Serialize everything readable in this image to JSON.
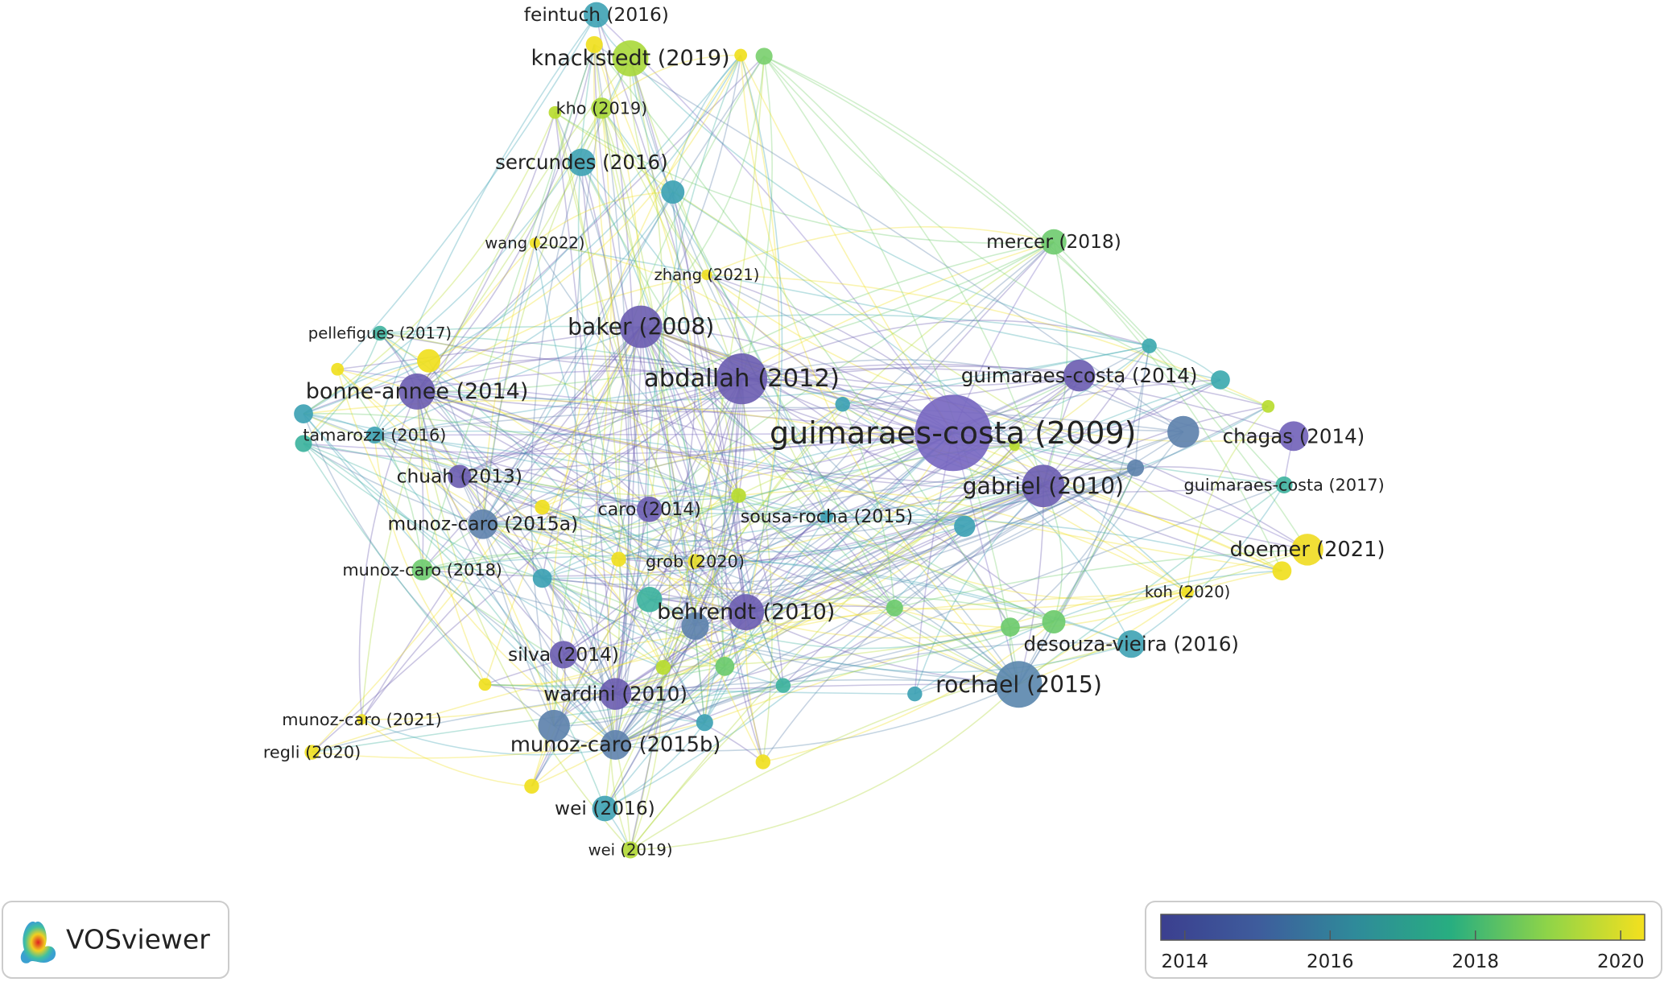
{
  "nodes": [
    {
      "label": "feintuch (2016)"
    },
    {
      "label": "knackstedt (2019)"
    },
    {
      "label": "kho (2019)"
    },
    {
      "label": "sercundes (2016)"
    },
    {
      "label": "wang (2022)"
    },
    {
      "label": "zhang (2021)"
    },
    {
      "label": "mercer (2018)"
    },
    {
      "label": "pellefigues (2017)"
    },
    {
      "label": "baker (2008)"
    },
    {
      "label": "abdallah (2012)"
    },
    {
      "label": "guimaraes-costa (2014)"
    },
    {
      "label": "bonne-annee (2014)"
    },
    {
      "label": "guimaraes-costa (2009)"
    },
    {
      "label": "chagas (2014)"
    },
    {
      "label": "tamarozzi (2016)"
    },
    {
      "label": "chuah (2013)"
    },
    {
      "label": "gabriel (2010)"
    },
    {
      "label": "guimaraes-costa (2017)"
    },
    {
      "label": "caro (2014)"
    },
    {
      "label": "sousa-rocha (2015)"
    },
    {
      "label": "munoz-caro (2015a)"
    },
    {
      "label": "doemer (2021)"
    },
    {
      "label": "grob (2020)"
    },
    {
      "label": "munoz-caro (2018)"
    },
    {
      "label": "koh (2020)"
    },
    {
      "label": "behrendt (2010)"
    },
    {
      "label": "desouza-vieira (2016)"
    },
    {
      "label": "silva (2014)"
    },
    {
      "label": "rochael (2015)"
    },
    {
      "label": "wardini (2010)"
    },
    {
      "label": "munoz-caro (2021)"
    },
    {
      "label": "munoz-caro (2015b)"
    },
    {
      "label": "regli (2020)"
    },
    {
      "label": "wei (2016)"
    },
    {
      "label": "wei (2019)"
    }
  ],
  "legend": {
    "range": [
      2013.67,
      2020.33
    ],
    "ticks": [
      2014,
      2016,
      2018,
      2020
    ]
  },
  "logo": {
    "text": "VOSviewer"
  }
}
